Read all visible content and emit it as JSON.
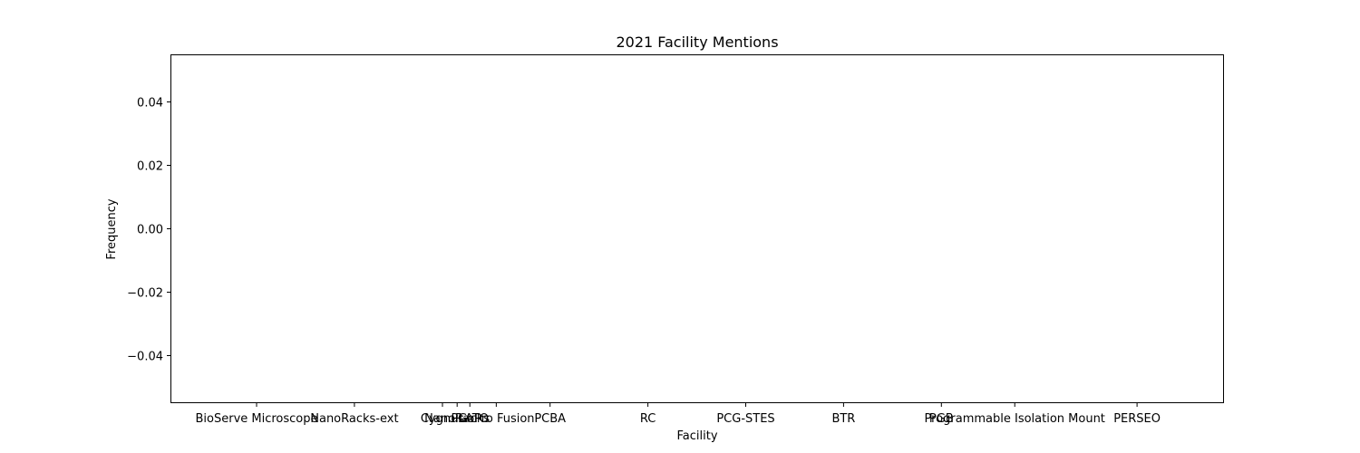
{
  "chart_data": {
    "type": "bar",
    "title": "2021 Facility Mentions",
    "xlabel": "Facility",
    "ylabel": "Frequency",
    "categories": [
      "BioServe Microscope",
      "NanoRacks-ext",
      "Cygnus",
      "NanoRacks",
      "PLATO",
      "GoPro Fusion",
      "PCBA",
      "RC",
      "PCG-STES",
      "BTR",
      "PGB",
      "Programmable Isolation Mount",
      "PERSEO"
    ],
    "values": [
      0,
      0,
      0,
      0,
      0,
      0,
      0,
      0,
      0,
      0,
      0,
      0,
      0
    ],
    "x_ticks": [
      {
        "label": "BioServe Microscope",
        "pos": 0
      },
      {
        "label": "NanoRacks-ext",
        "pos": 1
      },
      {
        "label": "Cygnus",
        "pos": 1.9
      },
      {
        "label": "NanoRacks",
        "pos": 2.05
      },
      {
        "label": "PLATO",
        "pos": 2.18
      },
      {
        "label": "GoPro Fusion",
        "pos": 2.45
      },
      {
        "label": "PCBA",
        "pos": 3
      },
      {
        "label": "RC",
        "pos": 4
      },
      {
        "label": "PCG-STES",
        "pos": 5
      },
      {
        "label": "BTR",
        "pos": 6
      },
      {
        "label": "PGB",
        "pos": 7
      },
      {
        "label": "Programmable Isolation Mount",
        "pos": 7.75
      },
      {
        "label": "PERSEO",
        "pos": 9
      }
    ],
    "ylim": [
      -0.055,
      0.055
    ],
    "yticks": [
      -0.04,
      -0.02,
      0.0,
      0.02,
      0.04
    ],
    "ytick_labels": [
      "−0.04",
      "−0.02",
      "0.00",
      "0.02",
      "0.04"
    ],
    "grid": false,
    "legend": false
  }
}
